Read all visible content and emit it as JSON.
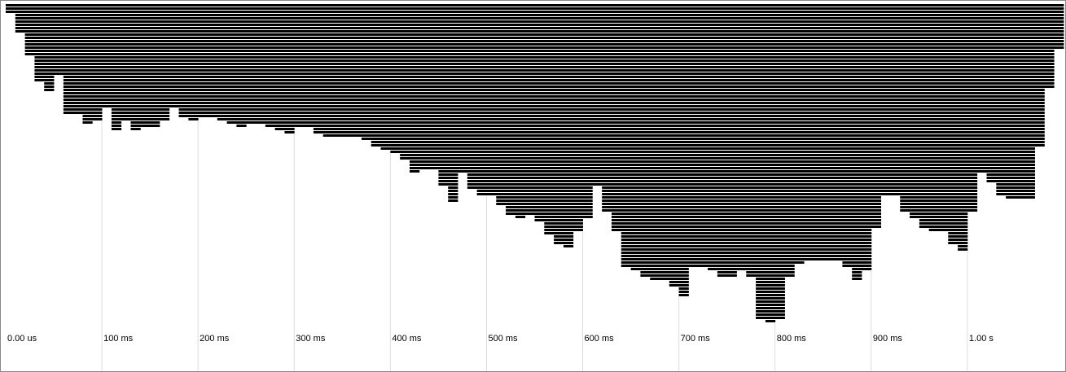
{
  "chart_data": {
    "type": "icicle",
    "x": [
      0,
      10,
      20,
      30,
      40,
      50,
      60,
      70,
      80,
      90,
      100,
      110,
      120,
      130,
      140,
      150,
      160,
      170,
      180,
      190,
      200,
      210,
      220,
      230,
      240,
      250,
      260,
      270,
      280,
      290,
      300,
      310,
      320,
      330,
      340,
      350,
      360,
      370,
      380,
      390,
      400,
      410,
      420,
      430,
      440,
      450,
      460,
      470,
      480,
      490,
      500,
      510,
      520,
      530,
      540,
      550,
      560,
      570,
      580,
      590,
      600,
      610,
      620,
      630,
      640,
      650,
      660,
      670,
      680,
      690,
      700,
      710,
      720,
      730,
      740,
      750,
      760,
      770,
      780,
      790,
      800,
      810,
      820,
      830,
      840,
      850,
      860,
      870,
      880,
      890,
      900,
      910,
      920,
      930,
      940,
      950,
      960,
      970,
      980,
      990,
      1000,
      1010,
      1020,
      1030,
      1040,
      1050,
      1060,
      1070,
      1080,
      1090
    ],
    "values": [
      3,
      9,
      16,
      24,
      27,
      22,
      34,
      34,
      37,
      36,
      32,
      39,
      36,
      39,
      38,
      38,
      36,
      32,
      35,
      36,
      35,
      35,
      36,
      37,
      38,
      37,
      37,
      38,
      39,
      40,
      38,
      38,
      40,
      41,
      41,
      41,
      41,
      42,
      44,
      45,
      46,
      48,
      52,
      51,
      51,
      56,
      61,
      52,
      57,
      59,
      59,
      62,
      65,
      66,
      65,
      67,
      71,
      74,
      75,
      70,
      66,
      56,
      64,
      70,
      81,
      82,
      84,
      85,
      85,
      87,
      90,
      81,
      81,
      82,
      84,
      84,
      82,
      84,
      97,
      98,
      97,
      84,
      80,
      79,
      79,
      79,
      79,
      81,
      85,
      82,
      69,
      59,
      59,
      64,
      66,
      69,
      70,
      70,
      74,
      76,
      64,
      52,
      55,
      59,
      60,
      60,
      60,
      44,
      26,
      14
    ],
    "color": "#000000",
    "xlim": [
      0,
      1100
    ],
    "xticks": [
      {
        "value": 0,
        "label": "0.00 us"
      },
      {
        "value": 100,
        "label": "100 ms"
      },
      {
        "value": 200,
        "label": "200 ms"
      },
      {
        "value": 300,
        "label": "300 ms"
      },
      {
        "value": 400,
        "label": "400 ms"
      },
      {
        "value": 500,
        "label": "500 ms"
      },
      {
        "value": 600,
        "label": "600 ms"
      },
      {
        "value": 700,
        "label": "700 ms"
      },
      {
        "value": 800,
        "label": "800 ms"
      },
      {
        "value": 900,
        "label": "900 ms"
      },
      {
        "value": 1000,
        "label": "1.00 s"
      }
    ],
    "grid": true
  }
}
